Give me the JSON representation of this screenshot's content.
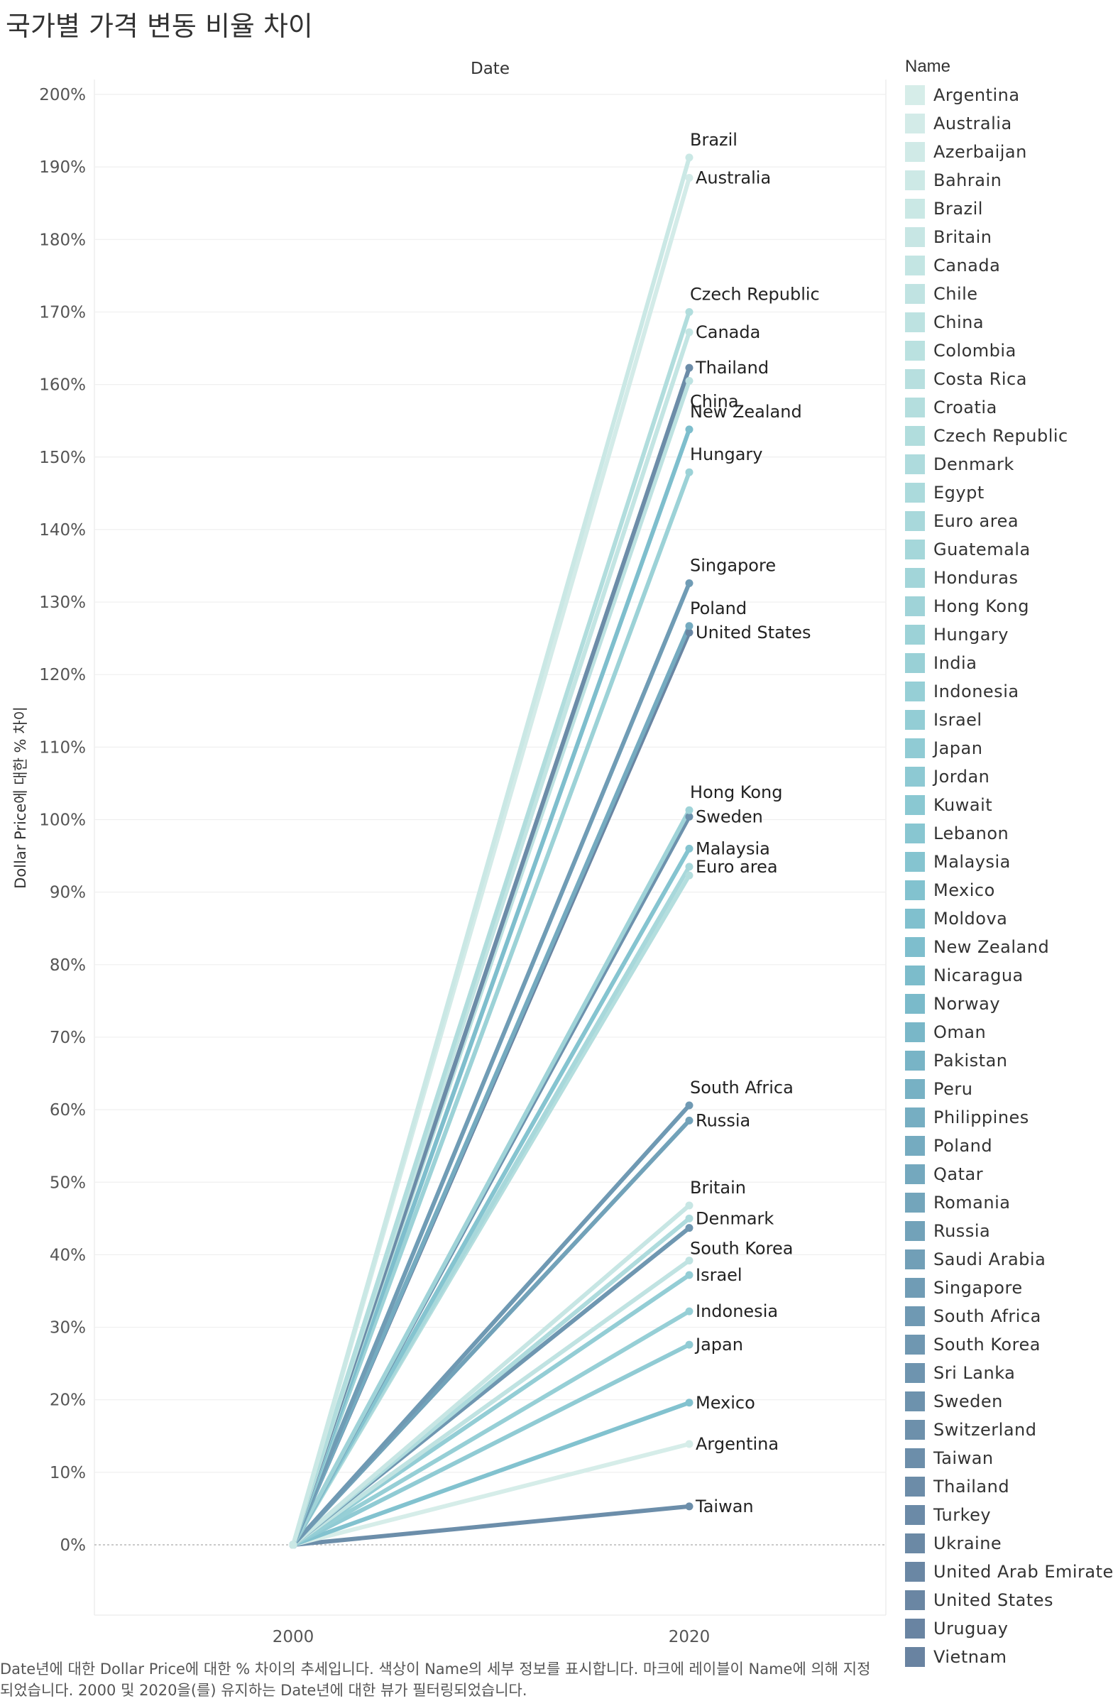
{
  "title": "국가별 가격 변동 비율 차이",
  "caption": "Date년에 대한 Dollar Price에 대한 % 차이의 추세입니다.  색상이 Name의 세부 정보를 표시합니다.  마크에 레이블이 Name에 의해 지정되었습니다. 2000 및 2020을(를) 유지하는 Date년에 대한 뷰가 필터링되었습니다.",
  "legend": {
    "title": "Name",
    "items": [
      {
        "label": "Argentina",
        "color": "#d6ede9"
      },
      {
        "label": "Australia",
        "color": "#d3ebe8"
      },
      {
        "label": "Azerbaijan",
        "color": "#d0eae7"
      },
      {
        "label": "Bahrain",
        "color": "#cde9e6"
      },
      {
        "label": "Brazil",
        "color": "#cae8e5"
      },
      {
        "label": "Britain",
        "color": "#c7e6e4"
      },
      {
        "label": "Canada",
        "color": "#c3e5e3"
      },
      {
        "label": "Chile",
        "color": "#c0e3e2"
      },
      {
        "label": "China",
        "color": "#bde2e1"
      },
      {
        "label": "Colombia",
        "color": "#bae1e0"
      },
      {
        "label": "Costa Rica",
        "color": "#b7dfdf"
      },
      {
        "label": "Croatia",
        "color": "#b4dede"
      },
      {
        "label": "Czech Republic",
        "color": "#b1dddd"
      },
      {
        "label": "Denmark",
        "color": "#aedbdd"
      },
      {
        "label": "Egypt",
        "color": "#abdadc"
      },
      {
        "label": "Euro area",
        "color": "#a8d8db"
      },
      {
        "label": "Guatemala",
        "color": "#a5d7da"
      },
      {
        "label": "Honduras",
        "color": "#a2d5d9"
      },
      {
        "label": "Hong Kong",
        "color": "#9fd3d8"
      },
      {
        "label": "Hungary",
        "color": "#9cd2d7"
      },
      {
        "label": "India",
        "color": "#99d0d6"
      },
      {
        "label": "Indonesia",
        "color": "#96cfd6"
      },
      {
        "label": "Israel",
        "color": "#93cdd5"
      },
      {
        "label": "Japan",
        "color": "#90cbd4"
      },
      {
        "label": "Jordan",
        "color": "#8dc9d3"
      },
      {
        "label": "Kuwait",
        "color": "#8ac8d2"
      },
      {
        "label": "Lebanon",
        "color": "#88c6d1"
      },
      {
        "label": "Malaysia",
        "color": "#85c4d0"
      },
      {
        "label": "Mexico",
        "color": "#82c2cf"
      },
      {
        "label": "Moldova",
        "color": "#80c0ce"
      },
      {
        "label": "New Zealand",
        "color": "#7ebecd"
      },
      {
        "label": "Nicaragua",
        "color": "#7cbccb"
      },
      {
        "label": "Norway",
        "color": "#7abaca"
      },
      {
        "label": "Oman",
        "color": "#79b7c8"
      },
      {
        "label": "Pakistan",
        "color": "#78b4c6"
      },
      {
        "label": "Peru",
        "color": "#77b1c4"
      },
      {
        "label": "Philippines",
        "color": "#76aec2"
      },
      {
        "label": "Poland",
        "color": "#75abc0"
      },
      {
        "label": "Qatar",
        "color": "#74a8be"
      },
      {
        "label": "Romania",
        "color": "#73a5bb"
      },
      {
        "label": "Russia",
        "color": "#72a2b9"
      },
      {
        "label": "Saudi Arabia",
        "color": "#719fb7"
      },
      {
        "label": "Singapore",
        "color": "#709cb5"
      },
      {
        "label": "South Africa",
        "color": "#6f99b3"
      },
      {
        "label": "South Korea",
        "color": "#6f97b1"
      },
      {
        "label": "Sri Lanka",
        "color": "#6e94af"
      },
      {
        "label": "Sweden",
        "color": "#6d92ad"
      },
      {
        "label": "Switzerland",
        "color": "#6d90ab"
      },
      {
        "label": "Taiwan",
        "color": "#6c8eaa"
      },
      {
        "label": "Thailand",
        "color": "#6c8ca8"
      },
      {
        "label": "Turkey",
        "color": "#6b8aa7"
      },
      {
        "label": "Ukraine",
        "color": "#6b89a5"
      },
      {
        "label": "United Arab Emirates",
        "color": "#6a87a4"
      },
      {
        "label": "United States",
        "color": "#6a86a3"
      },
      {
        "label": "Uruguay",
        "color": "#6984a2"
      },
      {
        "label": "Vietnam",
        "color": "#6983a1"
      }
    ]
  },
  "chart_data": {
    "type": "line",
    "title": "국가별 가격 변동 비율 차이",
    "column_header": "Date",
    "xlabel": "",
    "ylabel": "Dollar Price에 대한 % 차이",
    "x": [
      "2000",
      "2020"
    ],
    "ylim": [
      0,
      200
    ],
    "yticks": [
      0,
      10,
      20,
      30,
      40,
      50,
      60,
      70,
      80,
      90,
      100,
      110,
      120,
      130,
      140,
      150,
      160,
      170,
      180,
      190,
      200
    ],
    "ytick_labels": [
      "0%",
      "10%",
      "20%",
      "30%",
      "40%",
      "50%",
      "60%",
      "70%",
      "80%",
      "90%",
      "100%",
      "110%",
      "120%",
      "130%",
      "140%",
      "150%",
      "160%",
      "170%",
      "180%",
      "190%",
      "200%"
    ],
    "grid": "horizontal",
    "series": [
      {
        "name": "Brazil",
        "values": [
          0,
          191.3
        ],
        "color": "#cae8e5",
        "label": "Brazil",
        "label_side": "above"
      },
      {
        "name": "Australia",
        "values": [
          0,
          188.5
        ],
        "color": "#d3ebe8",
        "label": "Australia",
        "label_side": "right"
      },
      {
        "name": "Czech Republic",
        "values": [
          0,
          170.0
        ],
        "color": "#b1dddd",
        "label": "Czech Republic",
        "label_side": "above"
      },
      {
        "name": "Canada",
        "values": [
          0,
          167.2
        ],
        "color": "#c3e5e3",
        "label": "Canada",
        "label_side": "right"
      },
      {
        "name": "Thailand",
        "values": [
          0,
          162.3
        ],
        "color": "#6c8ca8",
        "label": "Thailand",
        "label_side": "right"
      },
      {
        "name": "China",
        "values": [
          0,
          160.5
        ],
        "color": "#bde2e1",
        "label": "China",
        "label_side": "below"
      },
      {
        "name": "New Zealand",
        "values": [
          0,
          153.8
        ],
        "color": "#7ebecd",
        "label": "New Zealand",
        "label_side": "above"
      },
      {
        "name": "Hungary",
        "values": [
          0,
          147.9
        ],
        "color": "#9cd2d7",
        "label": "Hungary",
        "label_side": "above"
      },
      {
        "name": "Singapore",
        "values": [
          0,
          132.6
        ],
        "color": "#709cb5",
        "label": "Singapore",
        "label_side": "above"
      },
      {
        "name": "Poland",
        "values": [
          0,
          126.7
        ],
        "color": "#75abc0",
        "label": "Poland",
        "label_side": "above"
      },
      {
        "name": "United States",
        "values": [
          0,
          125.8
        ],
        "color": "#6a86a3",
        "label": "United States",
        "label_side": "right"
      },
      {
        "name": "Hong Kong",
        "values": [
          0,
          101.3
        ],
        "color": "#9fd3d8",
        "label": "Hong Kong",
        "label_side": "above"
      },
      {
        "name": "Sweden",
        "values": [
          0,
          100.4
        ],
        "color": "#6d92ad",
        "label": "Sweden",
        "label_side": "right"
      },
      {
        "name": "Malaysia",
        "values": [
          0,
          96.0
        ],
        "color": "#85c4d0",
        "label": "Malaysia",
        "label_side": "right"
      },
      {
        "name": "Euro area",
        "values": [
          0,
          93.5
        ],
        "color": "#a8d8db",
        "label": "Euro area",
        "label_side": "right"
      },
      {
        "name": "Croatia",
        "values": [
          0,
          92.3
        ],
        "color": "#b4dede"
      },
      {
        "name": "South Africa",
        "values": [
          0,
          60.6
        ],
        "color": "#6f99b3",
        "label": "South Africa",
        "label_side": "above"
      },
      {
        "name": "Russia",
        "values": [
          0,
          58.5
        ],
        "color": "#72a2b9",
        "label": "Russia",
        "label_side": "right"
      },
      {
        "name": "Britain",
        "values": [
          0,
          46.8
        ],
        "color": "#c7e6e4",
        "label": "Britain",
        "label_side": "above"
      },
      {
        "name": "Denmark",
        "values": [
          0,
          45.0
        ],
        "color": "#aedbdd",
        "label": "Denmark",
        "label_side": "right"
      },
      {
        "name": "South Korea",
        "values": [
          0,
          43.7
        ],
        "color": "#6f97b1",
        "label": "South Korea",
        "label_side": "below"
      },
      {
        "name": "Chile",
        "values": [
          0,
          39.2
        ],
        "color": "#c0e3e2"
      },
      {
        "name": "Israel",
        "values": [
          0,
          37.2
        ],
        "color": "#93cdd5",
        "label": "Israel",
        "label_side": "right"
      },
      {
        "name": "Indonesia",
        "values": [
          0,
          32.2
        ],
        "color": "#96cfd6",
        "label": "Indonesia",
        "label_side": "right"
      },
      {
        "name": "Japan",
        "values": [
          0,
          27.6
        ],
        "color": "#90cbd4",
        "label": "Japan",
        "label_side": "right"
      },
      {
        "name": "Mexico",
        "values": [
          0,
          19.6
        ],
        "color": "#82c2cf",
        "label": "Mexico",
        "label_side": "right"
      },
      {
        "name": "Argentina",
        "values": [
          0,
          13.9
        ],
        "color": "#d6ede9",
        "label": "Argentina",
        "label_side": "right"
      },
      {
        "name": "Taiwan",
        "values": [
          0,
          5.3
        ],
        "color": "#6c8eaa",
        "label": "Taiwan",
        "label_side": "right"
      }
    ]
  }
}
